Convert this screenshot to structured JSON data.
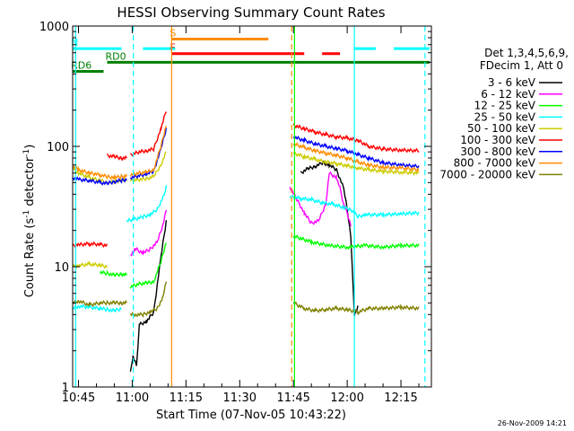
{
  "chart_data": {
    "type": "line",
    "title": "HESSI Observing Summary Count Rates",
    "xlabel": "Start Time (07-Nov-05 10:43:22)",
    "ylabel_main": "Count Rate (s",
    "ylabel_sup": "-1",
    "ylabel_mid": " detector",
    "ylabel_sup2": "-1",
    "ylabel_end": ")",
    "ylog": true,
    "ylim": [
      1,
      1000
    ],
    "xlim_minutes": [
      43.37,
      143.5
    ],
    "x_ticks": [
      {
        "m": 45,
        "label": "10:45"
      },
      {
        "m": 60,
        "label": "11:00"
      },
      {
        "m": 75,
        "label": "11:15"
      },
      {
        "m": 90,
        "label": "11:30"
      },
      {
        "m": 105,
        "label": "11:45"
      },
      {
        "m": 120,
        "label": "12:00"
      },
      {
        "m": 135,
        "label": "12:15"
      }
    ],
    "y_ticks": [
      {
        "v": 1,
        "label": "1"
      },
      {
        "v": 10,
        "label": "10"
      },
      {
        "v": 100,
        "label": "100"
      },
      {
        "v": 1000,
        "label": "1000"
      }
    ],
    "legend_header": [
      "Det 1,3,4,5,6,9,",
      "FDecim 1, Att 0"
    ],
    "legend_position": "right",
    "series": [
      {
        "name": "3 - 6 keV",
        "color": "#000000",
        "segments": [
          [
            [
              59.5,
              1.3
            ],
            [
              60.2,
              1.8
            ],
            [
              61.2,
              1.5
            ],
            [
              62,
              3.3
            ],
            [
              64,
              3.5
            ],
            [
              66,
              4.2
            ],
            [
              68,
              12
            ],
            [
              69.5,
              24
            ]
          ],
          [
            [
              107,
              60
            ],
            [
              109,
              65
            ],
            [
              111,
              68
            ],
            [
              113,
              73
            ],
            [
              115,
              70
            ],
            [
              117,
              64
            ],
            [
              119,
              45
            ],
            [
              120,
              30
            ],
            [
              121,
              18
            ],
            [
              122,
              4
            ],
            [
              123,
              4.6
            ]
          ]
        ]
      },
      {
        "name": "6 - 12 keV",
        "color": "#ff00ff",
        "segments": [
          [
            [
              59.5,
              12.5
            ],
            [
              61,
              14
            ],
            [
              63,
              13
            ],
            [
              65,
              14
            ],
            [
              67,
              16
            ],
            [
              68.5,
              22
            ],
            [
              69.5,
              30
            ]
          ],
          [
            [
              104,
              46
            ],
            [
              106,
              36
            ],
            [
              108,
              28
            ],
            [
              110,
              23
            ],
            [
              112,
              24
            ],
            [
              114,
              33
            ],
            [
              115,
              60
            ],
            [
              117,
              55
            ],
            [
              118,
              45
            ],
            [
              119,
              33
            ],
            [
              120,
              28
            ],
            [
              121,
              22
            ]
          ]
        ]
      },
      {
        "name": "12 - 25 keV",
        "color": "#00ff00",
        "segments": [
          [
            [
              51,
              9
            ],
            [
              53,
              8.8
            ],
            [
              55,
              8.5
            ],
            [
              57,
              8.7
            ],
            [
              58.5,
              8.5
            ]
          ],
          [
            [
              59.5,
              6.8
            ],
            [
              62,
              7.2
            ],
            [
              64,
              7.3
            ],
            [
              66,
              7.5
            ],
            [
              68,
              11
            ],
            [
              69.5,
              16
            ]
          ],
          [
            [
              105,
              18
            ],
            [
              110,
              16
            ],
            [
              115,
              15
            ],
            [
              120,
              14.5
            ],
            [
              125,
              15
            ],
            [
              130,
              14.5
            ],
            [
              135,
              15
            ],
            [
              140,
              15
            ]
          ]
        ]
      },
      {
        "name": "25 - 50 keV",
        "color": "#00ffff",
        "segments": [
          [
            [
              43.4,
              4.5
            ],
            [
              45,
              4.7
            ],
            [
              48,
              4.6
            ],
            [
              51,
              4.5
            ],
            [
              53,
              4.4
            ],
            [
              55,
              4.3
            ],
            [
              57,
              4.5
            ]
          ],
          [
            [
              58.5,
              24
            ],
            [
              61,
              25
            ],
            [
              63,
              26
            ],
            [
              65,
              27
            ],
            [
              67,
              30
            ],
            [
              69,
              40
            ],
            [
              69.5,
              46
            ]
          ],
          [
            [
              104,
              38
            ],
            [
              107,
              37
            ],
            [
              110,
              36
            ],
            [
              113,
              34
            ],
            [
              116,
              33
            ],
            [
              119,
              31
            ],
            [
              121,
              30
            ],
            [
              123,
              26
            ],
            [
              125,
              27
            ],
            [
              130,
              27
            ],
            [
              135,
              27.5
            ],
            [
              140,
              28
            ]
          ]
        ]
      },
      {
        "name": "50 - 100 keV",
        "color": "#cccc00",
        "segments": [
          [
            [
              43.4,
              10
            ],
            [
              45,
              10.2
            ],
            [
              48,
              10.5
            ],
            [
              51,
              10.3
            ],
            [
              53,
              10
            ]
          ],
          [
            [
              43.4,
              65
            ],
            [
              45,
              60
            ],
            [
              48,
              55
            ],
            [
              51,
              52
            ],
            [
              53,
              50
            ],
            [
              55,
              51
            ],
            [
              57,
              52
            ],
            [
              58.5,
              53
            ]
          ],
          [
            [
              59.5,
              52
            ],
            [
              62,
              53
            ],
            [
              64,
              54
            ],
            [
              66,
              56
            ],
            [
              68,
              70
            ],
            [
              69.5,
              90
            ]
          ],
          [
            [
              105,
              88
            ],
            [
              108,
              82
            ],
            [
              111,
              78
            ],
            [
              114,
              74
            ],
            [
              117,
              72
            ],
            [
              120,
              69
            ],
            [
              123,
              66
            ],
            [
              126,
              64
            ],
            [
              130,
              62
            ],
            [
              135,
              61
            ],
            [
              140,
              60
            ]
          ]
        ]
      },
      {
        "name": "100 - 300 keV",
        "color": "#ff0000",
        "segments": [
          [
            [
              43.4,
              15
            ],
            [
              45,
              15.2
            ],
            [
              48,
              15.5
            ],
            [
              51,
              15.3
            ],
            [
              53,
              15
            ]
          ],
          [
            [
              53,
              84
            ],
            [
              55,
              82
            ],
            [
              57,
              80
            ],
            [
              58.5,
              80
            ]
          ],
          [
            [
              59.5,
              85
            ],
            [
              62,
              90
            ],
            [
              64,
              92
            ],
            [
              66,
              95
            ],
            [
              68,
              140
            ],
            [
              69.5,
              200
            ]
          ],
          [
            [
              105,
              150
            ],
            [
              108,
              140
            ],
            [
              111,
              132
            ],
            [
              114,
              125
            ],
            [
              117,
              120
            ],
            [
              120,
              117
            ],
            [
              123,
              112
            ],
            [
              126,
              100
            ],
            [
              130,
              95
            ],
            [
              135,
              93
            ],
            [
              140,
              92
            ]
          ]
        ]
      },
      {
        "name": "300 - 800 keV",
        "color": "#0000ff",
        "segments": [
          [
            [
              43.4,
              55
            ],
            [
              45,
              53
            ],
            [
              48,
              52
            ],
            [
              51,
              50
            ],
            [
              53,
              49
            ],
            [
              55,
              51
            ],
            [
              57,
              52
            ],
            [
              58.5,
              53
            ]
          ],
          [
            [
              59.5,
              55
            ],
            [
              62,
              57
            ],
            [
              64,
              59
            ],
            [
              66,
              62
            ],
            [
              68,
              95
            ],
            [
              69.5,
              140
            ]
          ],
          [
            [
              105,
              120
            ],
            [
              108,
              112
            ],
            [
              111,
              105
            ],
            [
              114,
              100
            ],
            [
              117,
              96
            ],
            [
              120,
              92
            ],
            [
              123,
              85
            ],
            [
              126,
              80
            ],
            [
              130,
              73
            ],
            [
              135,
              70
            ],
            [
              140,
              68
            ]
          ]
        ]
      },
      {
        "name": "800 - 7000 keV",
        "color": "#ff8c00",
        "segments": [
          [
            [
              43.4,
              68
            ],
            [
              45,
              64
            ],
            [
              48,
              60
            ],
            [
              51,
              58
            ],
            [
              53,
              56
            ],
            [
              55,
              55
            ],
            [
              57,
              56
            ],
            [
              58.5,
              57
            ]
          ],
          [
            [
              59.5,
              58
            ],
            [
              62,
              60
            ],
            [
              64,
              61
            ],
            [
              66,
              64
            ],
            [
              68,
              100
            ],
            [
              69.5,
              150
            ]
          ],
          [
            [
              105,
              105
            ],
            [
              108,
              98
            ],
            [
              111,
              92
            ],
            [
              114,
              88
            ],
            [
              117,
              84
            ],
            [
              120,
              80
            ],
            [
              123,
              74
            ],
            [
              126,
              70
            ],
            [
              130,
              67
            ],
            [
              135,
              66
            ],
            [
              140,
              64
            ]
          ]
        ]
      },
      {
        "name": "7000 - 20000 keV",
        "color": "#808000",
        "segments": [
          [
            [
              43.4,
              5
            ],
            [
              45,
              5.2
            ],
            [
              48,
              4.8
            ],
            [
              51,
              5
            ],
            [
              53,
              5
            ],
            [
              55,
              5
            ],
            [
              57,
              5
            ],
            [
              58.5,
              5
            ]
          ],
          [
            [
              59.5,
              4
            ],
            [
              61,
              4
            ],
            [
              63,
              4
            ],
            [
              65,
              4.2
            ],
            [
              67,
              4.5
            ],
            [
              68.5,
              5.5
            ],
            [
              69.5,
              7.5
            ]
          ],
          [
            [
              105,
              5
            ],
            [
              108,
              4.5
            ],
            [
              111,
              4.3
            ],
            [
              114,
              4.4
            ],
            [
              117,
              4.5
            ],
            [
              120,
              4.4
            ],
            [
              123,
              4.2
            ],
            [
              126,
              4.5
            ],
            [
              130,
              4.5
            ],
            [
              135,
              4.6
            ],
            [
              140,
              4.5
            ]
          ]
        ]
      }
    ],
    "states": [
      {
        "label": "N",
        "color": "#00ffff",
        "y": 650,
        "segments": [
          [
            43.4,
            57
          ],
          [
            63,
            72
          ],
          [
            122,
            128
          ],
          [
            133,
            143
          ]
        ]
      },
      {
        "label": "S",
        "color": "#ff8c00",
        "y": 780,
        "segments": [
          [
            71,
            98
          ]
        ]
      },
      {
        "label": "F",
        "color": "#ff0000",
        "y": 590,
        "segments": [
          [
            71,
            108
          ],
          [
            113,
            118
          ]
        ]
      },
      {
        "label": "RD0",
        "color": "#008000",
        "y": 500,
        "segments": [
          [
            53,
            143
          ]
        ]
      },
      {
        "label": "RD6",
        "color": "#008000",
        "y": 420,
        "segments": [
          [
            43.4,
            52
          ]
        ]
      }
    ],
    "vlines": [
      {
        "m": 44.2,
        "color": "#00ffff",
        "dash": false
      },
      {
        "m": 60.3,
        "color": "#00ffff",
        "dash": true
      },
      {
        "m": 71.0,
        "color": "#ff8c00",
        "dash": false
      },
      {
        "m": 104.5,
        "color": "#ff8c00",
        "dash": true
      },
      {
        "m": 105.3,
        "color": "#00ff00",
        "dash": false
      },
      {
        "m": 122.0,
        "color": "#00ffff",
        "dash": false
      },
      {
        "m": 141.7,
        "color": "#00ffff",
        "dash": true
      }
    ]
  },
  "footer_timestamp": "26-Nov-2009 14:21"
}
